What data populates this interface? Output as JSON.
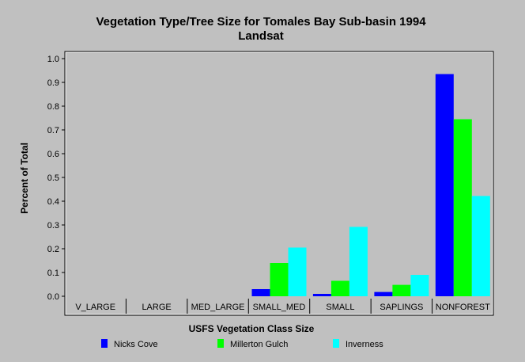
{
  "chart_data": {
    "type": "bar",
    "title": "Vegetation Type/Tree Size for Tomales Bay Sub-basin 1994",
    "subtitle": "Landsat",
    "xlabel": "USFS Vegetation Class Size",
    "ylabel": "Percent of Total",
    "ylim": [
      0,
      1.0
    ],
    "yticks": [
      "0.0",
      "0.1",
      "0.2",
      "0.3",
      "0.4",
      "0.5",
      "0.6",
      "0.7",
      "0.8",
      "0.9",
      "1.0"
    ],
    "categories": [
      "V_LARGE",
      "LARGE",
      "MED_LARGE",
      "SMALL_MED",
      "SMALL",
      "SAPLINGS",
      "NONFOREST"
    ],
    "series": [
      {
        "name": "Nicks Cove",
        "color": "#0000ff",
        "values": [
          0,
          0,
          0,
          0.03,
          0.01,
          0.018,
          0.935
        ]
      },
      {
        "name": "Millerton Gulch",
        "color": "#00ff00",
        "values": [
          0,
          0,
          0,
          0.14,
          0.065,
          0.048,
          0.745
        ]
      },
      {
        "name": "Inverness",
        "color": "#00ffff",
        "values": [
          0,
          0,
          0,
          0.205,
          0.292,
          0.09,
          0.422
        ]
      }
    ],
    "grid": false,
    "legend_position": "bottom"
  }
}
